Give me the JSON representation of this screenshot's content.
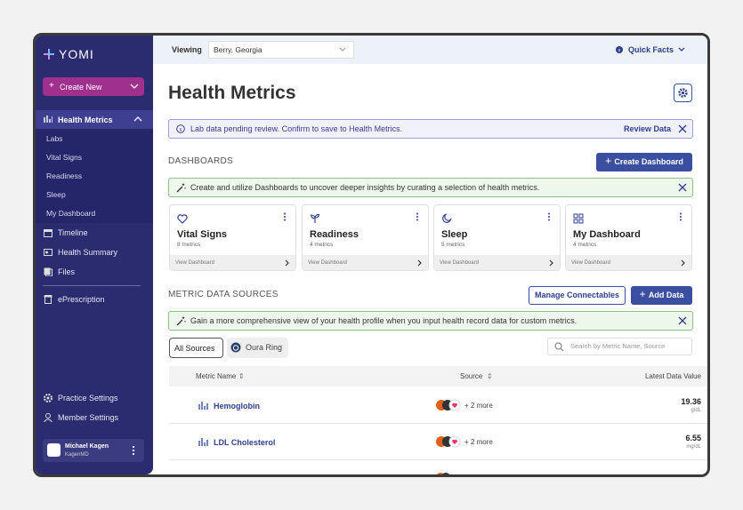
{
  "sidebar": {
    "brand": "YOMI",
    "create_button": "Create New",
    "active": "Health Metrics",
    "sub_nav": [
      "Labs",
      "Vital Signs",
      "Readiness",
      "Sleep",
      "My Dashboard"
    ],
    "nav": [
      "Timeline",
      "Health Summary",
      "Files"
    ],
    "nav_extra": "ePrescription",
    "settings": [
      "Practice Settings",
      "Member Settings"
    ],
    "user": {
      "name": "Michael Kagen",
      "org": "KagenMD"
    }
  },
  "topbar": {
    "viewing_label": "Viewing",
    "viewing_value": "Berry, Georgia",
    "quick_facts": "Quick Facts"
  },
  "header": {
    "title": "Health Metrics"
  },
  "alert": {
    "text": "Lab data pending review. Confirm to save to Health Metrics.",
    "action": "Review Data"
  },
  "dashboards": {
    "heading": "DASHBOARDS",
    "button": "Create Dashboard",
    "tip": "Create and utilize Dashboards to uncover deeper insights by curating a selection of health metrics.",
    "cards": [
      {
        "title": "Vital Signs",
        "subtitle": "8 metrics",
        "link": "View Dashboard"
      },
      {
        "title": "Readiness",
        "subtitle": "4 metrics",
        "link": "View Dashboard"
      },
      {
        "title": "Sleep",
        "subtitle": "5 metrics",
        "link": "View Dashboard"
      },
      {
        "title": "My Dashboard",
        "subtitle": "4 metrics",
        "link": "View Dashboard"
      }
    ]
  },
  "sources": {
    "heading": "METRIC DATA SOURCES",
    "manage_button": "Manage Connectables",
    "add_button": "Add Data",
    "tip": "Gain a more comprehensive view of your health profile when you input health record data for custom metrics.",
    "tabs": [
      "All Sources",
      "Oura Ring"
    ],
    "search_placeholder": "Search by Metric Name, Source",
    "columns": [
      "Metric Name",
      "Source",
      "Latest Data Value"
    ],
    "rows": [
      {
        "name": "Hemoglobin",
        "source_extra": "+ 2 more",
        "value": "19.36",
        "unit": "g/dL"
      },
      {
        "name": "LDL Cholesterol",
        "source_extra": "+ 2 more",
        "value": "6.55",
        "unit": "mg/dL"
      }
    ]
  }
}
